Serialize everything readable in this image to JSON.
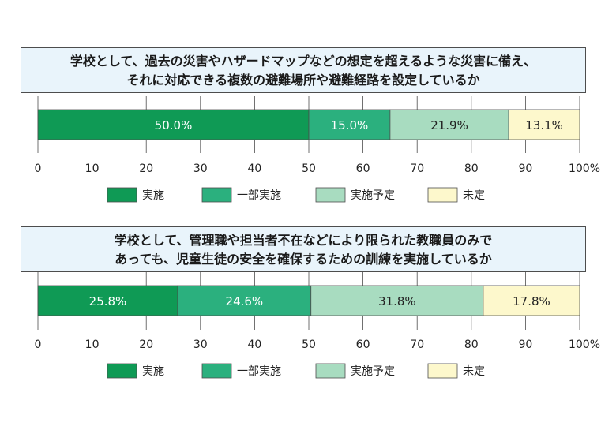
{
  "colors": {
    "implemented": "#0f9a55",
    "partial": "#2bb07e",
    "planned": "#a8dcc0",
    "not_yet": "#fdf8cc",
    "question_bg": "#e9f4fb",
    "grid": "#4d4d4d"
  },
  "chart_data": [
    {
      "type": "bar",
      "orientation": "horizontal-stacked-100",
      "title_lines": [
        "学校として、過去の災害やハザードマップなどの想定を超えるような災害に備え、",
        "それに対応できる複数の避難場所や避難経路を設定しているか"
      ],
      "xlim": [
        0,
        100
      ],
      "x_ticks": [
        "0",
        "10",
        "20",
        "30",
        "40",
        "50",
        "60",
        "70",
        "80",
        "90",
        "100%"
      ],
      "grid": true,
      "legend_position": "bottom",
      "series": [
        {
          "name": "実施",
          "value": 50.0,
          "label": "50.0%",
          "color_key": "implemented"
        },
        {
          "name": "一部実施",
          "value": 15.0,
          "label": "15.0%",
          "color_key": "partial"
        },
        {
          "name": "実施予定",
          "value": 21.9,
          "label": "21.9%",
          "color_key": "planned"
        },
        {
          "name": "未定",
          "value": 13.1,
          "label": "13.1%",
          "color_key": "not_yet"
        }
      ]
    },
    {
      "type": "bar",
      "orientation": "horizontal-stacked-100",
      "title_lines": [
        "学校として、管理職や担当者不在などにより限られた教職員のみで",
        "あっても、児童生徒の安全を確保するための訓練を実施しているか"
      ],
      "xlim": [
        0,
        100
      ],
      "x_ticks": [
        "0",
        "10",
        "20",
        "30",
        "40",
        "50",
        "60",
        "70",
        "80",
        "90",
        "100%"
      ],
      "grid": true,
      "legend_position": "bottom",
      "series": [
        {
          "name": "実施",
          "value": 25.8,
          "label": "25.8%",
          "color_key": "implemented"
        },
        {
          "name": "一部実施",
          "value": 24.6,
          "label": "24.6%",
          "color_key": "partial"
        },
        {
          "name": "実施予定",
          "value": 31.8,
          "label": "31.8%",
          "color_key": "planned"
        },
        {
          "name": "未定",
          "value": 17.8,
          "label": "17.8%",
          "color_key": "not_yet"
        }
      ]
    }
  ]
}
